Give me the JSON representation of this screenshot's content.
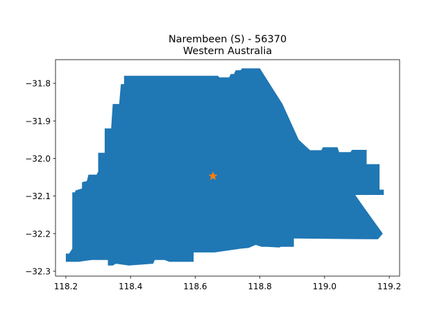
{
  "chart_data": {
    "type": "map",
    "title_line1": "Narembeen (S) - 56370",
    "title_line2": "Western Australia",
    "xlabel": "",
    "ylabel": "",
    "xlim": [
      118.168,
      119.232
    ],
    "ylim": [
      -32.313,
      -31.737
    ],
    "grid": false,
    "x_ticks": [
      {
        "value": 118.2,
        "label": "118.2"
      },
      {
        "value": 118.4,
        "label": "118.4"
      },
      {
        "value": 118.6,
        "label": "118.6"
      },
      {
        "value": 118.8,
        "label": "118.8"
      },
      {
        "value": 119.0,
        "label": "119.0"
      },
      {
        "value": 119.2,
        "label": "119.2"
      }
    ],
    "y_ticks": [
      {
        "value": -31.8,
        "label": "−31.8"
      },
      {
        "value": -31.9,
        "label": "−31.9"
      },
      {
        "value": -32.0,
        "label": "−32.0"
      },
      {
        "value": -32.1,
        "label": "−32.1"
      },
      {
        "value": -32.2,
        "label": "−32.2"
      },
      {
        "value": -32.3,
        "label": "−32.3"
      }
    ],
    "region": {
      "name": "Narembeen (S) - 56370",
      "fill_color": "#1f77b4",
      "boundary": [
        [
          118.38,
          -31.78
        ],
        [
          118.67,
          -31.78
        ],
        [
          118.675,
          -31.784
        ],
        [
          118.705,
          -31.784
        ],
        [
          118.71,
          -31.775
        ],
        [
          118.72,
          -31.775
        ],
        [
          118.725,
          -31.765
        ],
        [
          118.74,
          -31.765
        ],
        [
          118.745,
          -31.76
        ],
        [
          118.8,
          -31.76
        ],
        [
          118.87,
          -31.855
        ],
        [
          118.92,
          -31.95
        ],
        [
          118.955,
          -31.978
        ],
        [
          118.99,
          -31.978
        ],
        [
          118.995,
          -31.97
        ],
        [
          119.04,
          -31.97
        ],
        [
          119.045,
          -31.983
        ],
        [
          119.08,
          -31.983
        ],
        [
          119.085,
          -31.977
        ],
        [
          119.13,
          -31.977
        ],
        [
          119.13,
          -32.015
        ],
        [
          119.17,
          -32.015
        ],
        [
          119.17,
          -32.083
        ],
        [
          119.183,
          -32.083
        ],
        [
          119.183,
          -32.097
        ],
        [
          119.095,
          -32.097
        ],
        [
          119.12,
          -32.128
        ],
        [
          119.18,
          -32.2
        ],
        [
          119.165,
          -32.215
        ],
        [
          118.905,
          -32.213
        ],
        [
          118.905,
          -32.235
        ],
        [
          118.865,
          -32.235
        ],
        [
          118.86,
          -32.237
        ],
        [
          118.82,
          -32.235
        ],
        [
          118.805,
          -32.235
        ],
        [
          118.787,
          -32.23
        ],
        [
          118.765,
          -32.238
        ],
        [
          118.74,
          -32.24
        ],
        [
          118.66,
          -32.25
        ],
        [
          118.595,
          -32.25
        ],
        [
          118.595,
          -32.275
        ],
        [
          118.52,
          -32.275
        ],
        [
          118.505,
          -32.27
        ],
        [
          118.475,
          -32.27
        ],
        [
          118.47,
          -32.28
        ],
        [
          118.395,
          -32.285
        ],
        [
          118.355,
          -32.28
        ],
        [
          118.345,
          -32.285
        ],
        [
          118.33,
          -32.285
        ],
        [
          118.33,
          -32.27
        ],
        [
          118.28,
          -32.27
        ],
        [
          118.24,
          -32.275
        ],
        [
          118.2,
          -32.275
        ],
        [
          118.2,
          -32.253
        ],
        [
          118.21,
          -32.253
        ],
        [
          118.22,
          -32.24
        ],
        [
          118.22,
          -32.18
        ],
        [
          118.22,
          -32.09
        ],
        [
          118.228,
          -32.09
        ],
        [
          118.23,
          -32.085
        ],
        [
          118.25,
          -32.08
        ],
        [
          118.25,
          -32.063
        ],
        [
          118.265,
          -32.06
        ],
        [
          118.27,
          -32.043
        ],
        [
          118.295,
          -32.043
        ],
        [
          118.3,
          -32.035
        ],
        [
          118.3,
          -31.985
        ],
        [
          118.32,
          -31.985
        ],
        [
          118.32,
          -31.92
        ],
        [
          118.34,
          -31.92
        ],
        [
          118.345,
          -31.855
        ],
        [
          118.365,
          -31.855
        ],
        [
          118.37,
          -31.802
        ],
        [
          118.38,
          -31.802
        ]
      ]
    },
    "centroid_marker": {
      "x": 118.655,
      "y": -32.047,
      "symbol": "star",
      "color": "#ff7f0e"
    }
  }
}
